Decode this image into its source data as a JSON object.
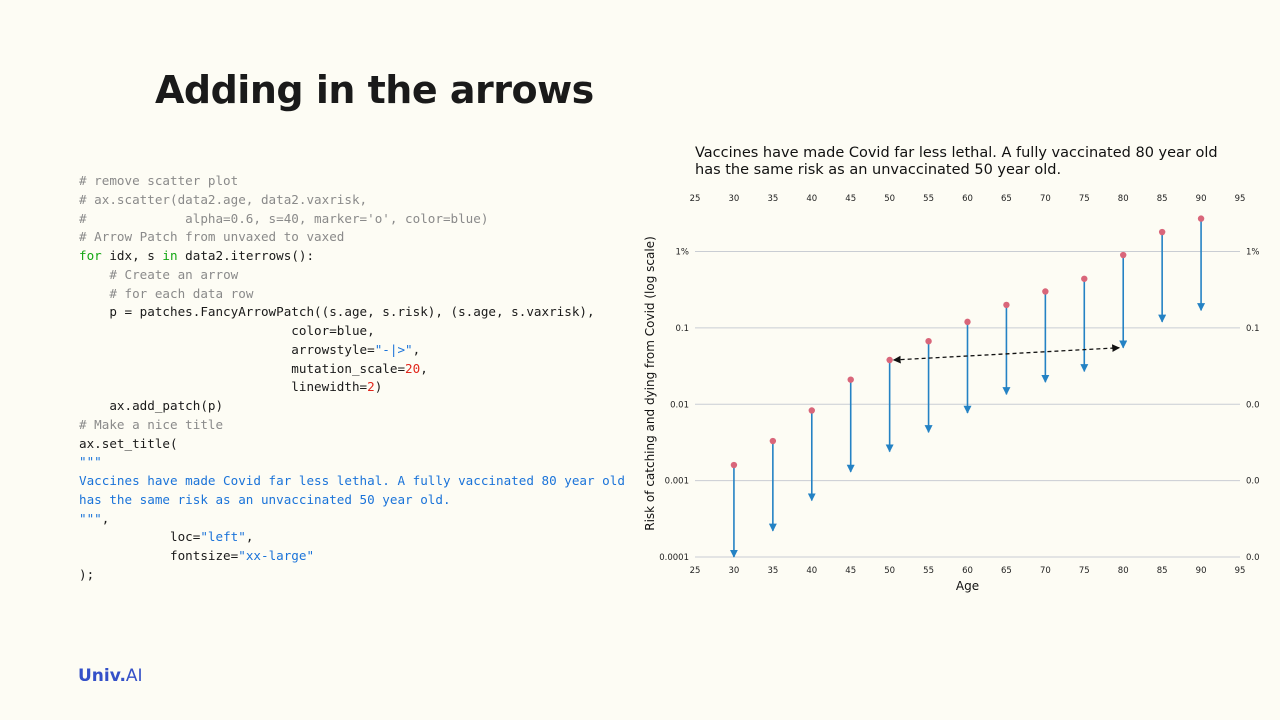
{
  "slide": {
    "title": "Adding in the arrows",
    "logo_univ": "Univ",
    "logo_dot": ".",
    "logo_ai": "AI"
  },
  "code_lines": [
    [
      {
        "t": "# remove scatter plot",
        "c": "cm"
      }
    ],
    [
      {
        "t": "# ax.scatter(data2.age, data2.vaxrisk,",
        "c": "cm"
      }
    ],
    [
      {
        "t": "#             alpha=0.6, s=40, marker='o', color=blue)",
        "c": "cm"
      }
    ],
    [
      {
        "t": "# Arrow Patch from unvaxed to vaxed",
        "c": "cm"
      }
    ],
    [
      {
        "t": "for",
        "c": "kw"
      },
      {
        "t": " idx, s "
      },
      {
        "t": "in",
        "c": "kw"
      },
      {
        "t": " data2.iterrows():"
      }
    ],
    [
      {
        "t": "    "
      },
      {
        "t": "# Create an arrow",
        "c": "cm"
      }
    ],
    [
      {
        "t": "    "
      },
      {
        "t": "# for each data row",
        "c": "cm"
      }
    ],
    [
      {
        "t": "    p = patches.FancyArrowPatch((s.age, s.risk), (s.age, s.vaxrisk),"
      }
    ],
    [
      {
        "t": "                            color=blue,"
      }
    ],
    [
      {
        "t": "                            arrowstyle="
      },
      {
        "t": "\"-|>\"",
        "c": "str"
      },
      {
        "t": ","
      }
    ],
    [
      {
        "t": "                            mutation_scale="
      },
      {
        "t": "20",
        "c": "num"
      },
      {
        "t": ","
      }
    ],
    [
      {
        "t": "                            linewidth="
      },
      {
        "t": "2",
        "c": "num"
      },
      {
        "t": ")"
      }
    ],
    [
      {
        "t": "    ax.add_patch(p)"
      }
    ],
    [
      {
        "t": "# Make a nice title",
        "c": "cm"
      }
    ],
    [
      {
        "t": "ax.set_title("
      }
    ],
    [
      {
        "t": "\"\"\"",
        "c": "str"
      }
    ],
    [
      {
        "t": "Vaccines have made Covid far less lethal. A fully vaccinated 80 year old",
        "c": "str"
      }
    ],
    [
      {
        "t": "has the same risk as an unvaccinated 50 year old.",
        "c": "str"
      }
    ],
    [
      {
        "t": "\"\"\"",
        "c": "str"
      },
      {
        "t": ","
      }
    ],
    [
      {
        "t": "            loc="
      },
      {
        "t": "\"left\"",
        "c": "str"
      },
      {
        "t": ","
      }
    ],
    [
      {
        "t": "            fontsize="
      },
      {
        "t": "\"xx-large\"",
        "c": "str"
      }
    ],
    [
      {
        "t": ");"
      }
    ]
  ],
  "chart_data": {
    "type": "scatter",
    "title_lines": [
      "Vaccines have made Covid far less lethal. A fully vaccinated 80 year old",
      "has the same risk as an unvaccinated 50 year old."
    ],
    "title_loc": "left",
    "xlabel": "Age",
    "ylabel": "Risk of catching and dying from Covid (log scale)",
    "xlim": [
      25,
      95
    ],
    "ylim": [
      0.0001,
      3.5
    ],
    "yscale": "log",
    "x_ticks": [
      25,
      30,
      35,
      40,
      45,
      50,
      55,
      60,
      65,
      70,
      75,
      80,
      85,
      90,
      95
    ],
    "y_ticks": [
      {
        "value": 0.0001,
        "label": "0.0001"
      },
      {
        "value": 0.001,
        "label": "0.001"
      },
      {
        "value": 0.01,
        "label": "0.01"
      },
      {
        "value": 0.1,
        "label": "0.1"
      },
      {
        "value": 1,
        "label": "1%"
      }
    ],
    "grid": "horizontal",
    "dot_color": "#d9667a",
    "arrow_color": "#2482c4",
    "comparison_arrow_color": "#111111",
    "x": [
      30,
      35,
      40,
      45,
      50,
      55,
      60,
      65,
      70,
      75,
      80,
      85,
      90
    ],
    "risk": [
      0.0016,
      0.0033,
      0.0083,
      0.021,
      0.038,
      0.067,
      0.12,
      0.2,
      0.3,
      0.44,
      0.9,
      1.8,
      2.7
    ],
    "vaxrisk": [
      0.0001,
      0.00022,
      0.00055,
      0.0013,
      0.0024,
      0.0043,
      0.0077,
      0.0135,
      0.0195,
      0.027,
      0.055,
      0.12,
      0.17
    ],
    "comparison": {
      "from_age": 50,
      "to_age": 80,
      "risk": 0.038
    }
  }
}
